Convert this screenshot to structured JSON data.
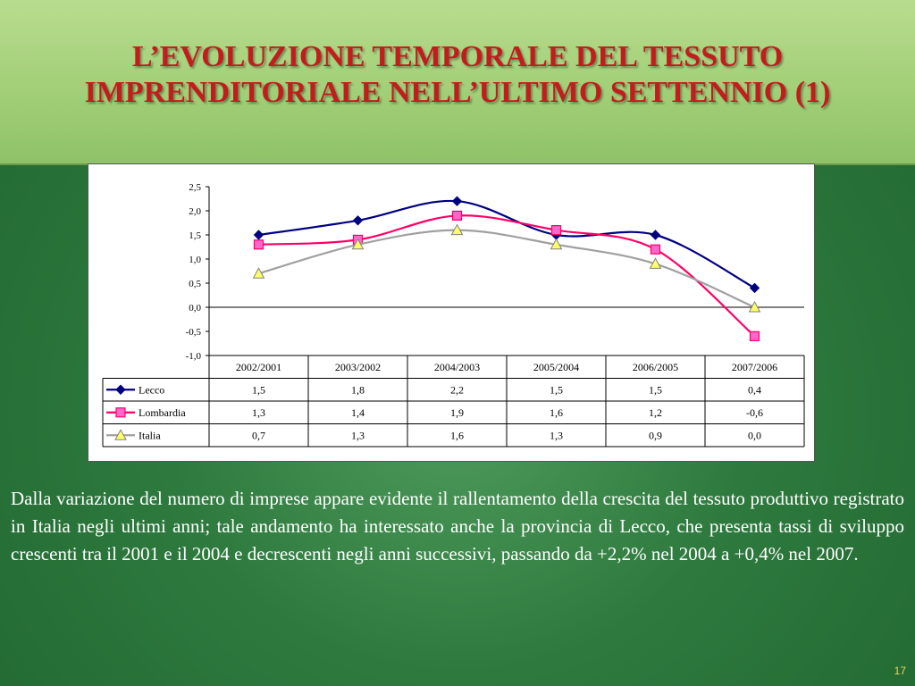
{
  "slide": {
    "title": "L’EVOLUZIONE TEMPORALE DEL TESSUTO IMPRENDITORIALE NELL’ULTIMO SETTENNIO (1)",
    "body": "Dalla variazione del numero di imprese appare evidente il rallentamento della crescita del tessuto produttivo registrato in Italia negli ultimi anni; tale andamento ha interessato anche la provincia di Lecco, che presenta tassi di sviluppo crescenti tra il 2001 e il 2004 e decrescenti negli anni successivi, passando da +2,2% nel 2004 a +0,4% nel 2007.",
    "page_number": "17",
    "colors": {
      "title": "#c21c1c",
      "header_bg": "#a2cf78",
      "slide_bg": "#2e7a3e"
    }
  },
  "chart_data": {
    "type": "line",
    "title": "",
    "xlabel": "",
    "ylabel": "",
    "ylim": [
      -1.0,
      2.5
    ],
    "yticks": [
      2.5,
      2.0,
      1.5,
      1.0,
      0.5,
      0.0,
      -0.5,
      -1.0
    ],
    "ytick_labels": [
      "2,5",
      "2,0",
      "1,5",
      "1,0",
      "0,5",
      "0,0",
      "-0,5",
      "-1,0"
    ],
    "grid": false,
    "legend": "data-table",
    "categories": [
      "2002/2001",
      "2003/2002",
      "2004/2003",
      "2005/2004",
      "2006/2005",
      "2007/2006"
    ],
    "series": [
      {
        "name": "Lecco",
        "values": [
          1.5,
          1.8,
          2.2,
          1.5,
          1.5,
          0.4
        ],
        "labels": [
          "1,5",
          "1,8",
          "2,2",
          "1,5",
          "1,5",
          "0,4"
        ],
        "color": "#000080",
        "marker": "diamond"
      },
      {
        "name": "Lombardia",
        "values": [
          1.3,
          1.4,
          1.9,
          1.6,
          1.2,
          -0.6
        ],
        "labels": [
          "1,3",
          "1,4",
          "1,9",
          "1,6",
          "1,2",
          "-0,6"
        ],
        "color": "#ff0066",
        "marker": "square"
      },
      {
        "name": "Italia",
        "values": [
          0.7,
          1.3,
          1.6,
          1.3,
          0.9,
          0.0
        ],
        "labels": [
          "0,7",
          "1,3",
          "1,6",
          "1,3",
          "0,9",
          "0,0"
        ],
        "color": "#a0a0a0",
        "marker": "triangle"
      }
    ]
  }
}
